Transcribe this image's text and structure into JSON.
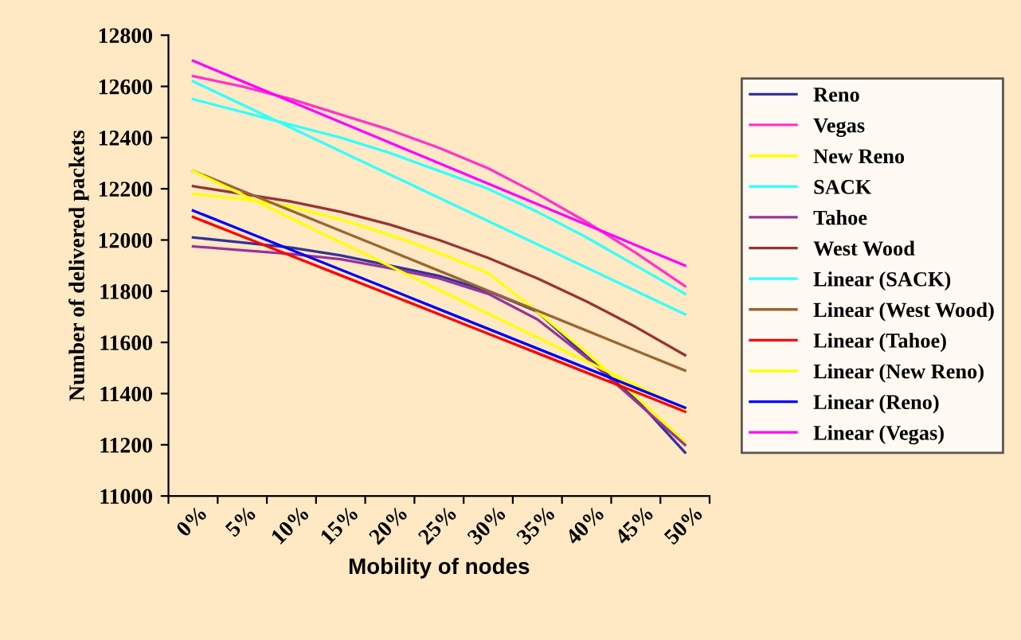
{
  "chart_data": {
    "type": "line",
    "xlabel": "Mobility of nodes",
    "ylabel": "Number of delivered packets",
    "categories": [
      "0%",
      "5%",
      "10%",
      "15%",
      "20%",
      "25%",
      "30%",
      "35%",
      "40%",
      "45%",
      "50%"
    ],
    "ylim": [
      11000,
      12800
    ],
    "yticks": [
      11000,
      11200,
      11400,
      11600,
      11800,
      12000,
      12200,
      12400,
      12600,
      12800
    ],
    "grid": false,
    "legend": "right",
    "marker": "none",
    "line_style": "solid",
    "series": [
      {
        "name": "Reno",
        "color": "#333399",
        "values": [
          12010,
          11990,
          11970,
          11940,
          11900,
          11860,
          11800,
          11720,
          11545,
          11380,
          11170
        ]
      },
      {
        "name": "Vegas",
        "color": "#ff33cc",
        "values": [
          12640,
          12600,
          12550,
          12490,
          12430,
          12360,
          12280,
          12180,
          12070,
          11950,
          11820
        ]
      },
      {
        "name": "New Reno",
        "color": "#ffff00",
        "values": [
          12180,
          12160,
          12130,
          12080,
          12020,
          11950,
          11870,
          11720,
          11560,
          11390,
          11210
        ]
      },
      {
        "name": "SACK",
        "color": "#33ffff",
        "values": [
          12550,
          12500,
          12450,
          12400,
          12340,
          12270,
          12200,
          12110,
          12010,
          11900,
          11790
        ]
      },
      {
        "name": "Tahoe",
        "color": "#993399",
        "values": [
          11975,
          11960,
          11945,
          11925,
          11890,
          11850,
          11790,
          11690,
          11540,
          11370,
          11200
        ]
      },
      {
        "name": "West Wood",
        "color": "#993333",
        "values": [
          12210,
          12180,
          12150,
          12110,
          12060,
          12000,
          11930,
          11850,
          11760,
          11660,
          11550
        ]
      },
      {
        "name": "Linear (SACK)",
        "color": "#33ffff",
        "values": [
          12620,
          12529,
          12438,
          12347,
          12256,
          12165,
          12074,
          11983,
          11892,
          11801,
          11710
        ]
      },
      {
        "name": "Linear (West Wood)",
        "color": "#996633",
        "values": [
          12270,
          12192,
          12114,
          12036,
          11958,
          11880,
          11802,
          11724,
          11646,
          11568,
          11490
        ]
      },
      {
        "name": "Linear (Tahoe)",
        "color": "#ff0000",
        "values": [
          12090,
          12014,
          11938,
          11862,
          11786,
          11710,
          11634,
          11558,
          11482,
          11406,
          11330
        ]
      },
      {
        "name": "Linear (New Reno)",
        "color": "#ffff00",
        "values": [
          12270,
          12177,
          12084,
          11991,
          11898,
          11805,
          11712,
          11619,
          11526,
          11433,
          11340
        ]
      },
      {
        "name": "Linear (Reno)",
        "color": "#0000ff",
        "values": [
          12115,
          12038,
          11961,
          11884,
          11807,
          11730,
          11653,
          11576,
          11499,
          11422,
          11345
        ]
      },
      {
        "name": "Linear (Vegas)",
        "color": "#ff00ff",
        "values": [
          12700,
          12620,
          12540,
          12460,
          12380,
          12300,
          12220,
          12140,
          12060,
          11980,
          11900
        ]
      }
    ]
  }
}
